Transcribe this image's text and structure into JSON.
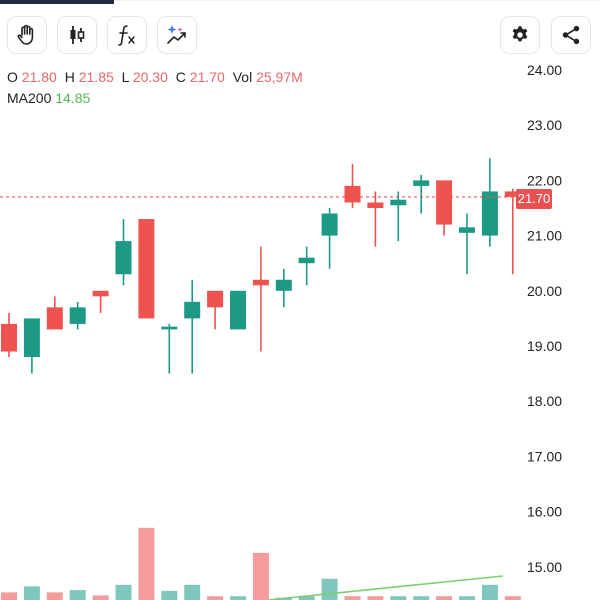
{
  "toolbar": {
    "left_buttons": [
      {
        "icon": "hand-icon"
      },
      {
        "icon": "candlestick-icon"
      },
      {
        "icon": "fx-icon"
      },
      {
        "icon": "sparkle-trend-icon"
      }
    ],
    "right_buttons": [
      {
        "icon": "gear-icon"
      },
      {
        "icon": "share-icon"
      }
    ]
  },
  "ohlc": {
    "o_label": "O",
    "o_value": "21.80",
    "h_label": "H",
    "h_value": "21.85",
    "l_label": "L",
    "l_value": "20.30",
    "c_label": "C",
    "c_value": "21.70",
    "vol_label": "Vol",
    "vol_value": "25,97M"
  },
  "ma": {
    "label": "MA200",
    "value": "14.85"
  },
  "price_axis": {
    "labels": [
      "24.00",
      "23.00",
      "22.00",
      "21.00",
      "20.00",
      "19.00",
      "18.00",
      "17.00",
      "16.00",
      "15.00"
    ],
    "min": 14.6,
    "max": 24.2
  },
  "current_price": {
    "label": "21.70",
    "value": 21.7
  },
  "colors": {
    "up": "#1c9a86",
    "down": "#ef5350",
    "vol_up": "#7fc7bc",
    "vol_down": "#f49b9b",
    "ma": "#7ccf6e",
    "accent": "#1f2d3d"
  },
  "chart_data": {
    "type": "candlestick",
    "candles": [
      {
        "o": 19.4,
        "h": 19.6,
        "l": 18.8,
        "c": 18.9
      },
      {
        "o": 18.8,
        "h": 19.5,
        "l": 18.5,
        "c": 19.5
      },
      {
        "o": 19.7,
        "h": 19.9,
        "l": 19.3,
        "c": 19.3
      },
      {
        "o": 19.4,
        "h": 19.8,
        "l": 19.3,
        "c": 19.7
      },
      {
        "o": 20.0,
        "h": 20.0,
        "l": 19.6,
        "c": 19.9
      },
      {
        "o": 20.3,
        "h": 21.3,
        "l": 20.1,
        "c": 20.9
      },
      {
        "o": 21.3,
        "h": 21.3,
        "l": 19.5,
        "c": 19.5
      },
      {
        "o": 19.3,
        "h": 19.4,
        "l": 18.5,
        "c": 19.35
      },
      {
        "o": 19.5,
        "h": 20.2,
        "l": 18.5,
        "c": 19.8
      },
      {
        "o": 20.0,
        "h": 20.0,
        "l": 19.3,
        "c": 19.7
      },
      {
        "o": 19.3,
        "h": 20.0,
        "l": 19.3,
        "c": 20.0
      },
      {
        "o": 20.2,
        "h": 20.8,
        "l": 18.9,
        "c": 20.1
      },
      {
        "o": 20.0,
        "h": 20.4,
        "l": 19.7,
        "c": 20.2
      },
      {
        "o": 20.5,
        "h": 20.8,
        "l": 20.1,
        "c": 20.6
      },
      {
        "o": 21.0,
        "h": 21.5,
        "l": 20.4,
        "c": 21.4
      },
      {
        "o": 21.9,
        "h": 22.3,
        "l": 21.5,
        "c": 21.6
      },
      {
        "o": 21.6,
        "h": 21.8,
        "l": 20.8,
        "c": 21.5
      },
      {
        "o": 21.55,
        "h": 21.8,
        "l": 20.9,
        "c": 21.65
      },
      {
        "o": 21.9,
        "h": 22.1,
        "l": 21.4,
        "c": 22.0
      },
      {
        "o": 22.0,
        "h": 22.0,
        "l": 21.0,
        "c": 21.2
      },
      {
        "o": 21.05,
        "h": 21.4,
        "l": 20.3,
        "c": 21.15
      },
      {
        "o": 21.0,
        "h": 22.4,
        "l": 20.8,
        "c": 21.8
      },
      {
        "o": 21.8,
        "h": 21.85,
        "l": 20.3,
        "c": 21.7
      }
    ],
    "volume_relative": [
      0.1,
      0.18,
      0.1,
      0.13,
      0.06,
      0.2,
      0.95,
      0.12,
      0.2,
      0.05,
      0.05,
      0.62,
      0.03,
      0.05,
      0.28,
      0.05,
      0.05,
      0.05,
      0.05,
      0.05,
      0.05,
      0.2,
      0.05
    ],
    "ma200": {
      "start": 14.85,
      "end": 14.85
    }
  }
}
